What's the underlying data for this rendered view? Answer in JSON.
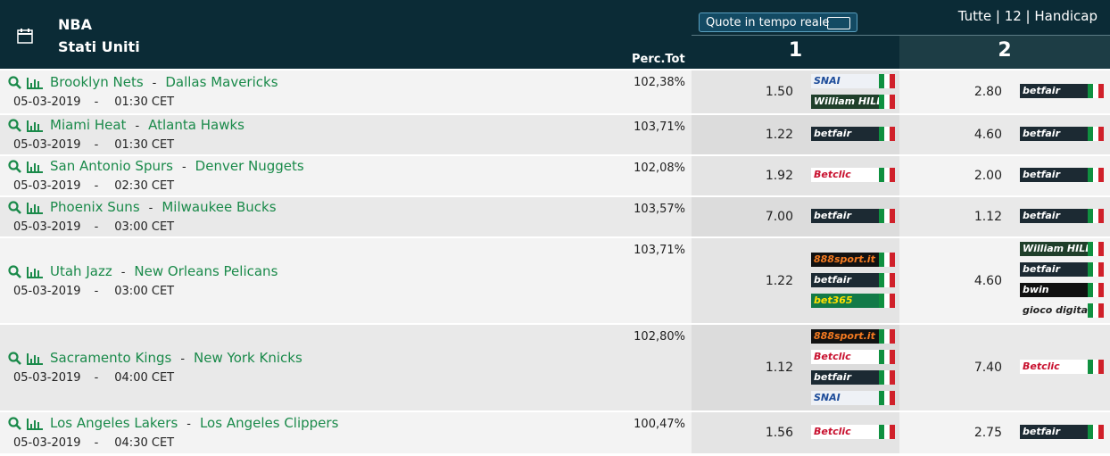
{
  "header": {
    "league": "NBA",
    "country": "Stati Uniti",
    "realtime_button": "Quote in tempo reale",
    "filters": "Tutte | 12 | Handicap",
    "perc_label": "Perc.Tot",
    "col1": "1",
    "col2": "2",
    "separator": "-"
  },
  "matches": [
    {
      "home": "Brooklyn Nets",
      "away": "Dallas Mavericks",
      "date": "05-03-2019",
      "time": "01:30 CET",
      "perc": "102,38%",
      "odds1": "1.50",
      "books1": [
        {
          "name": "SNAI",
          "color": "#1d4c9a",
          "background": "#eef1f6"
        },
        {
          "name": "William HILL",
          "color": "#ffffff",
          "background": "#1f3f2a"
        }
      ],
      "odds2": "2.80",
      "books2": [
        {
          "name": "betfair",
          "color": "#ffffff",
          "background": "#1c2a33"
        }
      ]
    },
    {
      "home": "Miami Heat",
      "away": "Atlanta Hawks",
      "date": "05-03-2019",
      "time": "01:30 CET",
      "perc": "103,71%",
      "odds1": "1.22",
      "books1": [
        {
          "name": "betfair",
          "color": "#ffffff",
          "background": "#1c2a33"
        }
      ],
      "odds2": "4.60",
      "books2": [
        {
          "name": "betfair",
          "color": "#ffffff",
          "background": "#1c2a33"
        }
      ]
    },
    {
      "home": "San Antonio Spurs",
      "away": "Denver Nuggets",
      "date": "05-03-2019",
      "time": "02:30 CET",
      "perc": "102,08%",
      "odds1": "1.92",
      "books1": [
        {
          "name": "Betclic",
          "color": "#c8102e",
          "background": "#ffffff"
        }
      ],
      "odds2": "2.00",
      "books2": [
        {
          "name": "betfair",
          "color": "#ffffff",
          "background": "#1c2a33"
        }
      ]
    },
    {
      "home": "Phoenix Suns",
      "away": "Milwaukee Bucks",
      "date": "05-03-2019",
      "time": "03:00 CET",
      "perc": "103,57%",
      "odds1": "7.00",
      "books1": [
        {
          "name": "betfair",
          "color": "#ffffff",
          "background": "#1c2a33"
        }
      ],
      "odds2": "1.12",
      "books2": [
        {
          "name": "betfair",
          "color": "#ffffff",
          "background": "#1c2a33"
        }
      ]
    },
    {
      "home": "Utah Jazz",
      "away": "New Orleans Pelicans",
      "date": "05-03-2019",
      "time": "03:00 CET",
      "perc": "103,71%",
      "odds1": "1.22",
      "books1": [
        {
          "name": "888sport.it",
          "color": "#f47a20",
          "background": "#111111"
        },
        {
          "name": "betfair",
          "color": "#ffffff",
          "background": "#1c2a33"
        },
        {
          "name": "bet365",
          "color": "#ffe000",
          "background": "#127a48"
        }
      ],
      "odds2": "4.60",
      "books2": [
        {
          "name": "William HILL",
          "color": "#ffffff",
          "background": "#1f3f2a"
        },
        {
          "name": "betfair",
          "color": "#ffffff",
          "background": "#1c2a33"
        },
        {
          "name": "bwin",
          "color": "#ffffff",
          "background": "#111111"
        },
        {
          "name": "gioco digitale",
          "color": "#222222",
          "background": "#f4f4f4"
        }
      ]
    },
    {
      "home": "Sacramento Kings",
      "away": "New York Knicks",
      "date": "05-03-2019",
      "time": "04:00 CET",
      "perc": "102,80%",
      "odds1": "1.12",
      "books1": [
        {
          "name": "888sport.it",
          "color": "#f47a20",
          "background": "#111111"
        },
        {
          "name": "Betclic",
          "color": "#c8102e",
          "background": "#ffffff"
        },
        {
          "name": "betfair",
          "color": "#ffffff",
          "background": "#1c2a33"
        },
        {
          "name": "SNAI",
          "color": "#1d4c9a",
          "background": "#eef1f6"
        }
      ],
      "odds2": "7.40",
      "books2": [
        {
          "name": "Betclic",
          "color": "#c8102e",
          "background": "#ffffff"
        }
      ]
    },
    {
      "home": "Los Angeles Lakers",
      "away": "Los Angeles Clippers",
      "date": "05-03-2019",
      "time": "04:30 CET",
      "perc": "100,47%",
      "odds1": "1.56",
      "books1": [
        {
          "name": "Betclic",
          "color": "#c8102e",
          "background": "#ffffff"
        }
      ],
      "odds2": "2.75",
      "books2": [
        {
          "name": "betfair",
          "color": "#ffffff",
          "background": "#1c2a33"
        }
      ]
    }
  ]
}
